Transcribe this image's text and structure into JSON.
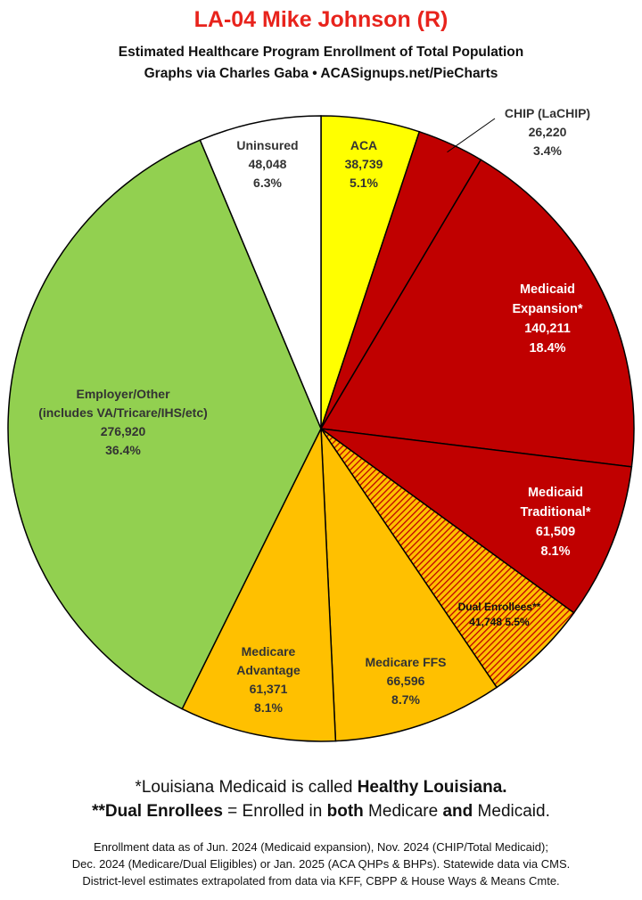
{
  "title": "LA-04 Mike Johnson (R)",
  "subtitle1": "Estimated Healthcare Program Enrollment of Total Population",
  "subtitle2": "Graphs via Charles Gaba  •  ACASignups.net/PieCharts",
  "footnote1": {
    "pre": "*Louisiana Medicaid is called ",
    "bold": "Healthy Louisiana."
  },
  "footnote2": {
    "b1": "**Dual Enrollees",
    "t1": " = Enrolled in ",
    "b2": "both",
    "t2": " Medicare ",
    "b3": "and",
    "t3": " Medicaid."
  },
  "source_lines": [
    "Enrollment data as of Jun. 2024 (Medicaid expansion), Nov. 2024 (CHIP/Total Medicaid);",
    "Dec. 2024 (Medicare/Dual Eligibles) or Jan. 2025 (ACA QHPs & BHPs). Statewide data via CMS.",
    "District-level estimates extrapolated from data via KFF, CBPP & House Ways & Means Cmte."
  ],
  "colors": {
    "aca": "#ffff00",
    "medicaid": "#c00000",
    "medicare": "#ffc000",
    "employer": "#92d050",
    "uninsured": "#ffffff",
    "title": "#e8231c",
    "hatch": "#c00000"
  },
  "chart_data": {
    "type": "pie",
    "start": "12 o'clock, clockwise",
    "slices": [
      {
        "key": "aca",
        "label_lines": [
          "ACA",
          "38,739",
          "5.1%"
        ],
        "value": 38739,
        "percent": 5.1
      },
      {
        "key": "chip",
        "label_lines": [
          "CHIP (LaCHIP)",
          "26,220",
          "3.4%"
        ],
        "value": 26220,
        "percent": 3.4
      },
      {
        "key": "medicaid_expansion",
        "label_lines": [
          "Medicaid",
          "Expansion*",
          "140,211",
          "18.4%"
        ],
        "value": 140211,
        "percent": 18.4
      },
      {
        "key": "medicaid_traditional",
        "label_lines": [
          "Medicaid",
          "Traditional*",
          "61,509",
          "8.1%"
        ],
        "value": 61509,
        "percent": 8.1
      },
      {
        "key": "dual_enrollees",
        "label_lines": [
          "Dual Enrollees**",
          "41,748 5.5%"
        ],
        "value": 41748,
        "percent": 5.5
      },
      {
        "key": "medicare_ffs",
        "label_lines": [
          "Medicare FFS",
          "66,596",
          "8.7%"
        ],
        "value": 66596,
        "percent": 8.7
      },
      {
        "key": "medicare_advantage",
        "label_lines": [
          "Medicare",
          "Advantage",
          "61,371",
          "8.1%"
        ],
        "value": 61371,
        "percent": 8.1
      },
      {
        "key": "employer_other",
        "label_lines": [
          "Employer/Other",
          "(includes VA/Tricare/IHS/etc)",
          "276,920",
          "36.4%"
        ],
        "value": 276920,
        "percent": 36.4
      },
      {
        "key": "uninsured",
        "label_lines": [
          "Uninsured",
          "48,048",
          "6.3%"
        ],
        "value": 48048,
        "percent": 6.3
      }
    ]
  }
}
